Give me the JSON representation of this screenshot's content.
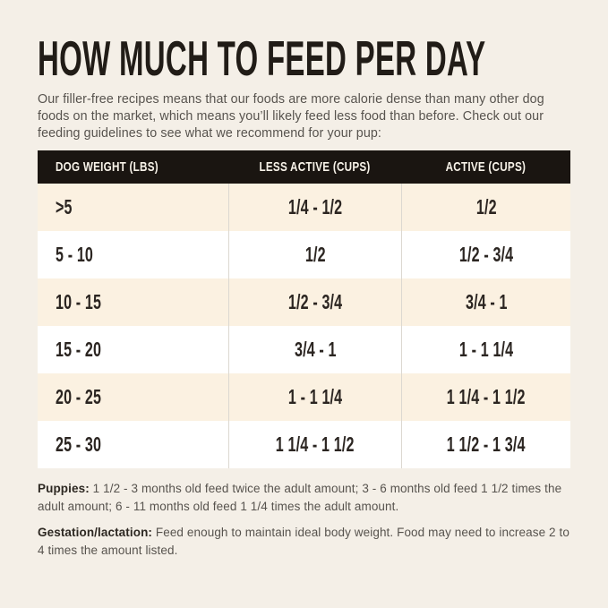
{
  "page": {
    "title": "HOW MUCH TO FEED PER DAY",
    "intro": "Our filler-free recipes means that our foods are more calorie dense than many other dog foods on the market, which means you’ll likely feed less food than before. Check out our feeding guidelines to see what we recommend for your pup:"
  },
  "table": {
    "columns": [
      "DOG WEIGHT (LBS)",
      "LESS ACTIVE (CUPS)",
      "ACTIVE (CUPS)"
    ],
    "rows": [
      [
        ">5",
        "1/4 - 1/2",
        "1/2"
      ],
      [
        "5 - 10",
        "1/2",
        "1/2 - 3/4"
      ],
      [
        "10 - 15",
        "1/2 - 3/4",
        "3/4 - 1"
      ],
      [
        "15 - 20",
        "3/4 - 1",
        "1 - 1 1/4"
      ],
      [
        "20 - 25",
        "1 - 1 1/4",
        "1 1/4 - 1 1/2"
      ],
      [
        "25 - 30",
        "1 1/4 - 1 1/2",
        "1 1/2 - 1 3/4"
      ]
    ]
  },
  "notes": {
    "puppies_label": "Puppies:",
    "puppies_text": "1 1/2 - 3 months old feed twice the adult amount; 3 - 6 months old feed 1 1/2 times the adult amount; 6 - 11 months old feed 1 1/4 times the adult amount.",
    "gestation_label": "Gestation/lactation:",
    "gestation_text": "Feed enough to maintain ideal body weight. Food may need to increase 2 to 4 times the amount listed."
  },
  "colors": {
    "page_background": "#f4efe7",
    "header_background": "#1a1511",
    "header_text": "#f7f2e8",
    "row_tint": "#fbf1e1",
    "row_plain": "#ffffff",
    "column_divider": "#dcd8d1",
    "title_text": "#211c17",
    "body_text": "#57534e",
    "cell_text": "#2b2521"
  }
}
